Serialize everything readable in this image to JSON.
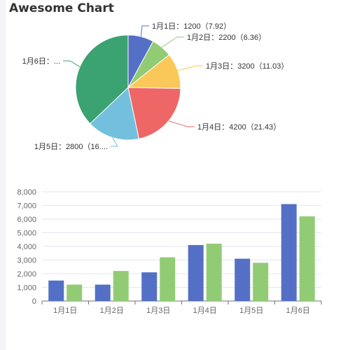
{
  "title": "Awesome Chart",
  "colors": {
    "pie": [
      "#5470c6",
      "#91cc75",
      "#fac858",
      "#ee6666",
      "#73c0de",
      "#3ba272"
    ],
    "bar_series": [
      "#5470c6",
      "#91cc75"
    ],
    "axis": "#6e7079",
    "grid": "#e0e6f1"
  },
  "chart_data": [
    {
      "type": "pie",
      "title": "",
      "categories": [
        "1月1日",
        "1月2日",
        "1月3日",
        "1月4日",
        "1月5日",
        "1月6日"
      ],
      "values": [
        1200,
        2200,
        3200,
        4200,
        2800,
        6200
      ],
      "labels": [
        "1月1日：1200（7.92）",
        "1月2日：2200（6.36）",
        "1月3日：3200（11.03）",
        "1月4日：4200（21.43）",
        "1月5日：2800（16....",
        "1月6日：..."
      ],
      "slice_percent": [
        7.9,
        6.4,
        11.0,
        21.4,
        16.2,
        37.1
      ]
    },
    {
      "type": "bar",
      "title": "",
      "xlabel": "",
      "ylabel": "",
      "categories": [
        "1月1日",
        "1月2日",
        "1月3日",
        "1月4日",
        "1月5日",
        "1月6日"
      ],
      "ylim": [
        0,
        8000
      ],
      "y_ticks": [
        "0",
        "1,000",
        "2,000",
        "3,000",
        "4,000",
        "5,000",
        "6,000",
        "7,000",
        "8,000"
      ],
      "grid": true,
      "series": [
        {
          "values": [
            1500,
            1200,
            2100,
            4100,
            3100,
            7100
          ]
        },
        {
          "values": [
            1200,
            2200,
            3200,
            4200,
            2800,
            6200
          ]
        }
      ]
    }
  ]
}
